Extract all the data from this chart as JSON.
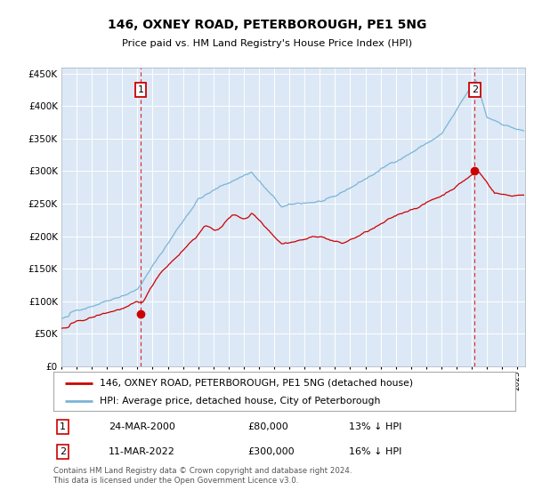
{
  "title": "146, OXNEY ROAD, PETERBOROUGH, PE1 5NG",
  "subtitle": "Price paid vs. HM Land Registry's House Price Index (HPI)",
  "legend_line1": "146, OXNEY ROAD, PETERBOROUGH, PE1 5NG (detached house)",
  "legend_line2": "HPI: Average price, detached house, City of Peterborough",
  "footnote": "Contains HM Land Registry data © Crown copyright and database right 2024.\nThis data is licensed under the Open Government Licence v3.0.",
  "table_row1": [
    "1",
    "24-MAR-2000",
    "£80,000",
    "13% ↓ HPI"
  ],
  "table_row2": [
    "2",
    "11-MAR-2022",
    "£300,000",
    "16% ↓ HPI"
  ],
  "sale1_year": 2000.22,
  "sale1_price": 80000,
  "sale2_year": 2022.19,
  "sale2_price": 300000,
  "hpi_color": "#7ab4d8",
  "price_color": "#cc0000",
  "plot_bg": "#dce8f5",
  "ylim": [
    0,
    460000
  ],
  "xlim_start": 1995.0,
  "xlim_end": 2025.5
}
